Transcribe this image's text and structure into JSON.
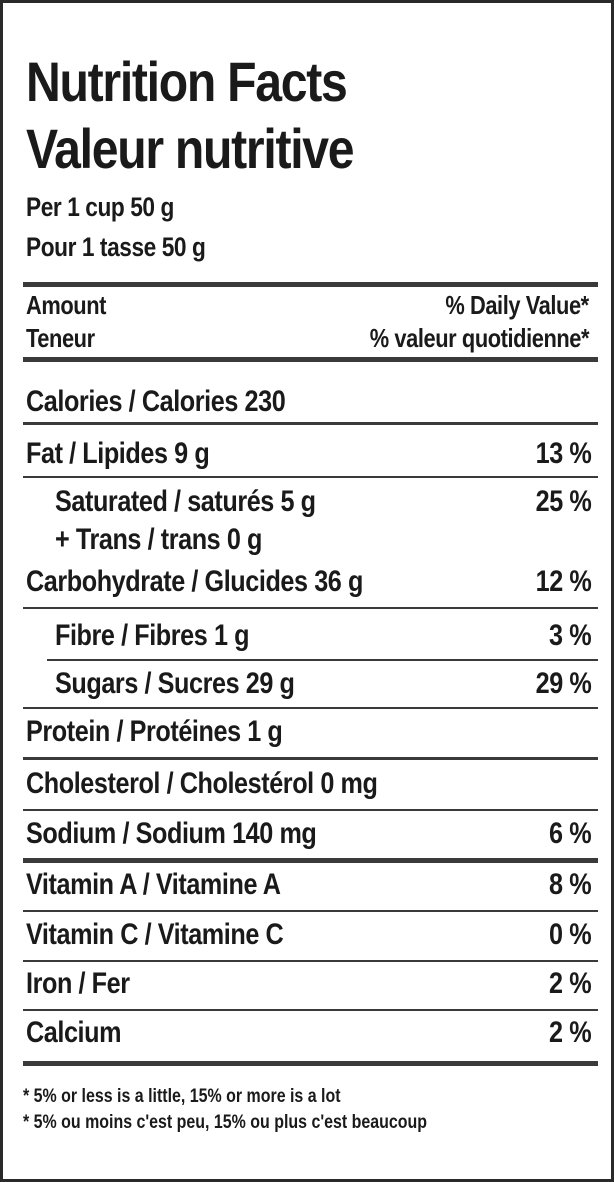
{
  "header": {
    "title_en": "Nutrition Facts",
    "title_fr": "Valeur nutritive",
    "serving_en": "Per 1 cup 50 g",
    "serving_fr": "Pour 1 tasse 50 g"
  },
  "columns": {
    "amount_en": "Amount",
    "amount_fr": "Teneur",
    "dv_en": "% Daily Value*",
    "dv_fr": "% valeur quotidienne*"
  },
  "nutrients": [
    {
      "name": "Calories / Calories 230",
      "dv": ""
    },
    {
      "name": "Fat / Lipides 9 g",
      "dv": "13 %"
    },
    {
      "name": "Saturated / saturés 5 g",
      "dv": "25 %"
    },
    {
      "name": "+ Trans / trans 0 g",
      "dv": ""
    },
    {
      "name": "Carbohydrate / Glucides 36 g",
      "dv": "12 %"
    },
    {
      "name": "Fibre / Fibres 1 g",
      "dv": "3 %"
    },
    {
      "name": "Sugars / Sucres 29 g",
      "dv": "29 %"
    },
    {
      "name": "Protein / Protéines 1 g",
      "dv": ""
    },
    {
      "name": "Cholesterol / Cholestérol 0 mg",
      "dv": ""
    },
    {
      "name": "Sodium / Sodium 140 mg",
      "dv": "6 %"
    },
    {
      "name": "Vitamin A / Vitamine A",
      "dv": "8 %"
    },
    {
      "name": "Vitamin C / Vitamine C",
      "dv": "0 %"
    },
    {
      "name": "Iron / Fer",
      "dv": "2 %"
    },
    {
      "name": "Calcium",
      "dv": "2 %"
    }
  ],
  "footnote": {
    "en": "* 5% or less is a little, 15% or more is a lot",
    "fr": "* 5% ou moins c'est peu, 15% ou plus c'est beaucoup"
  }
}
